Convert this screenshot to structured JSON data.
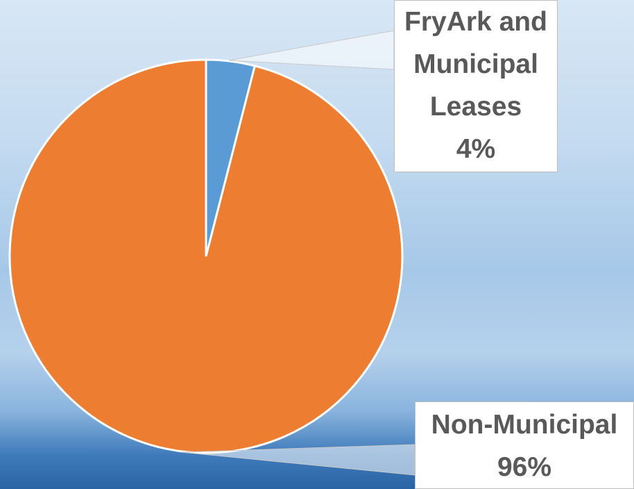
{
  "chart_data": {
    "type": "pie",
    "categories": [
      "FryArk and Municipal Leases",
      "Non-Municipal"
    ],
    "values": [
      4,
      96
    ],
    "value_labels": [
      "4%",
      "96%"
    ],
    "colors": [
      "#5b9bd5",
      "#ed7d31"
    ]
  }
}
